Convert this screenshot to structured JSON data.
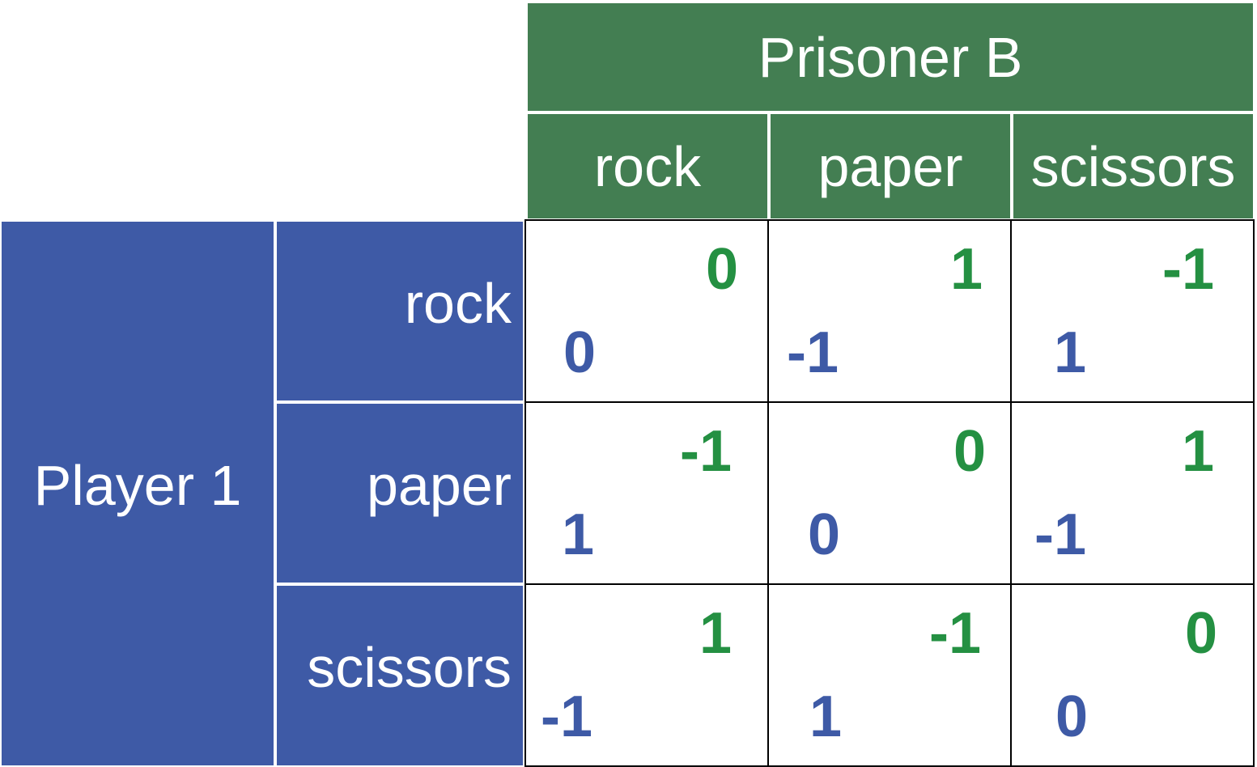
{
  "column_player": {
    "label": "Prisoner B",
    "color": "#437e52"
  },
  "row_player": {
    "label": "Player 1",
    "color": "#3e5aa6"
  },
  "column_strategies": [
    "rock",
    "paper",
    "scissors"
  ],
  "row_strategies": [
    "rock",
    "paper",
    "scissors"
  ],
  "payoff_colors": {
    "column_player": "#249042",
    "row_player": "#3e5aa6"
  },
  "payoffs": [
    [
      {
        "row_player": "0",
        "column_player": "0"
      },
      {
        "row_player": "-1",
        "column_player": "1"
      },
      {
        "row_player": "1",
        "column_player": "-1"
      }
    ],
    [
      {
        "row_player": "1",
        "column_player": "-1"
      },
      {
        "row_player": "0",
        "column_player": "0"
      },
      {
        "row_player": "-1",
        "column_player": "1"
      }
    ],
    [
      {
        "row_player": "-1",
        "column_player": "1"
      },
      {
        "row_player": "1",
        "column_player": "-1"
      },
      {
        "row_player": "0",
        "column_player": "0"
      }
    ]
  ]
}
